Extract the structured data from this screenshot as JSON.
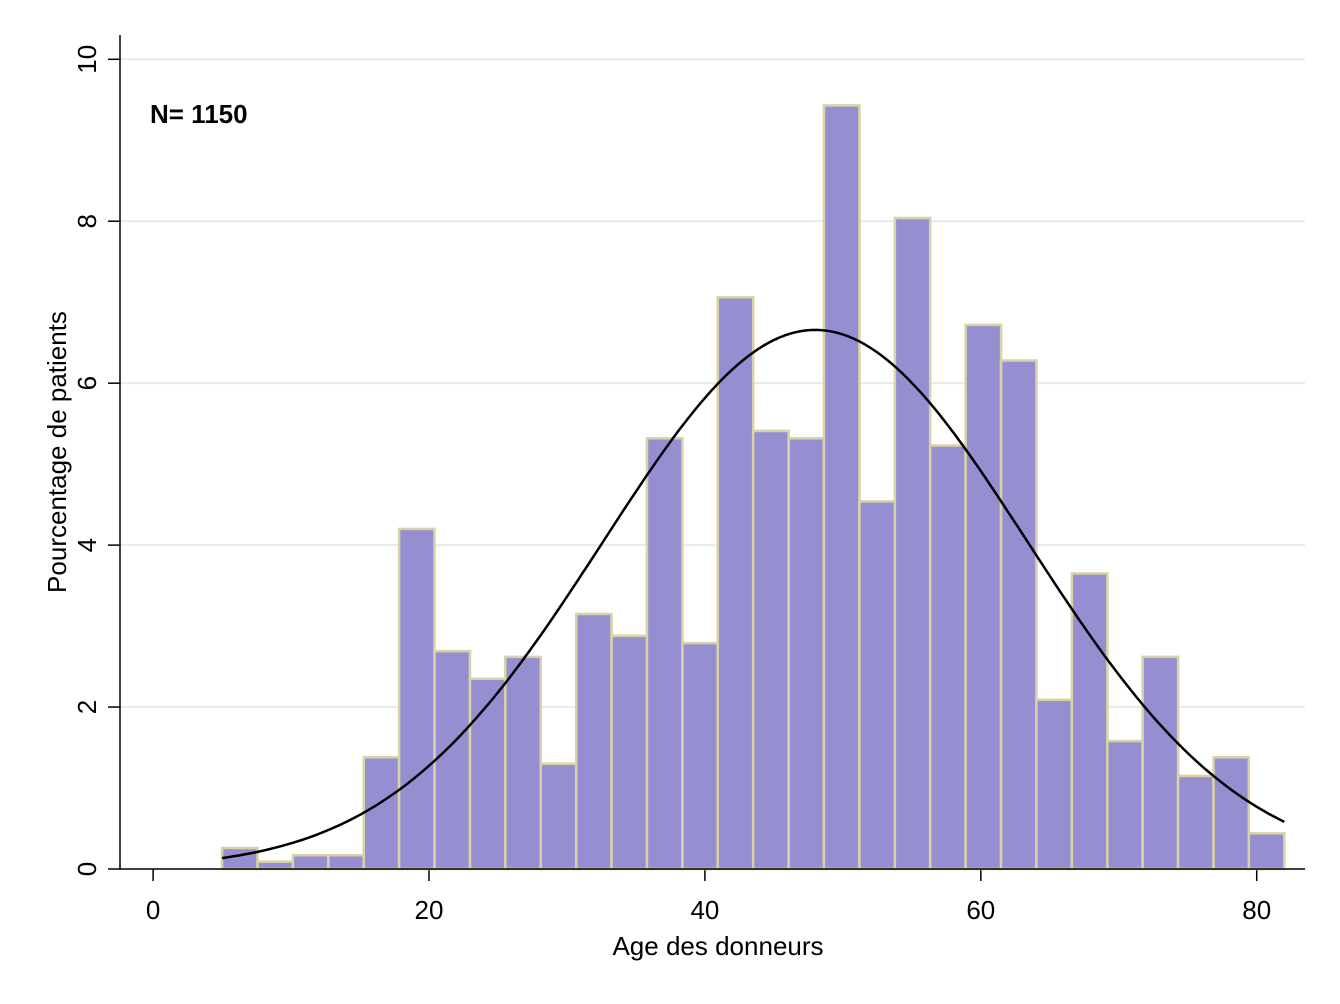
{
  "chart_data": {
    "type": "histogram",
    "x_label": "Age des donneurs",
    "y_label": "Pourcentage de patients",
    "annotation": "N= 1150",
    "bins": [
      5,
      7.57,
      10.13,
      12.7,
      15.27,
      17.83,
      20.4,
      22.97,
      25.53,
      28.1,
      30.67,
      33.23,
      35.8,
      38.37,
      40.93,
      43.5,
      46.07,
      48.63,
      51.2,
      53.77,
      56.33,
      58.9,
      61.47,
      64.03,
      66.6,
      69.17,
      71.73,
      74.3,
      76.87,
      79.43,
      82
    ],
    "values": [
      0.26,
      0.09,
      0.17,
      0.17,
      1.38,
      4.2,
      2.69,
      2.35,
      2.62,
      1.3,
      3.15,
      2.88,
      5.32,
      2.79,
      7.06,
      5.41,
      5.32,
      9.43,
      4.54,
      8.04,
      5.23,
      6.72,
      6.28,
      2.09,
      3.65,
      1.58,
      2.62,
      1.15,
      1.38,
      0.44
    ],
    "color": "#958fd2",
    "edge_color": "#d9d2a6",
    "normal_fit": {
      "mean": 48,
      "sd": 15.4,
      "color": "#000000"
    },
    "xlim": [
      -2.4,
      83.5
    ],
    "ylim": [
      0,
      10.3
    ],
    "xticks": [
      0,
      20,
      40,
      60,
      80
    ],
    "yticks": [
      0,
      2,
      4,
      6,
      8,
      10
    ],
    "grid": true
  }
}
